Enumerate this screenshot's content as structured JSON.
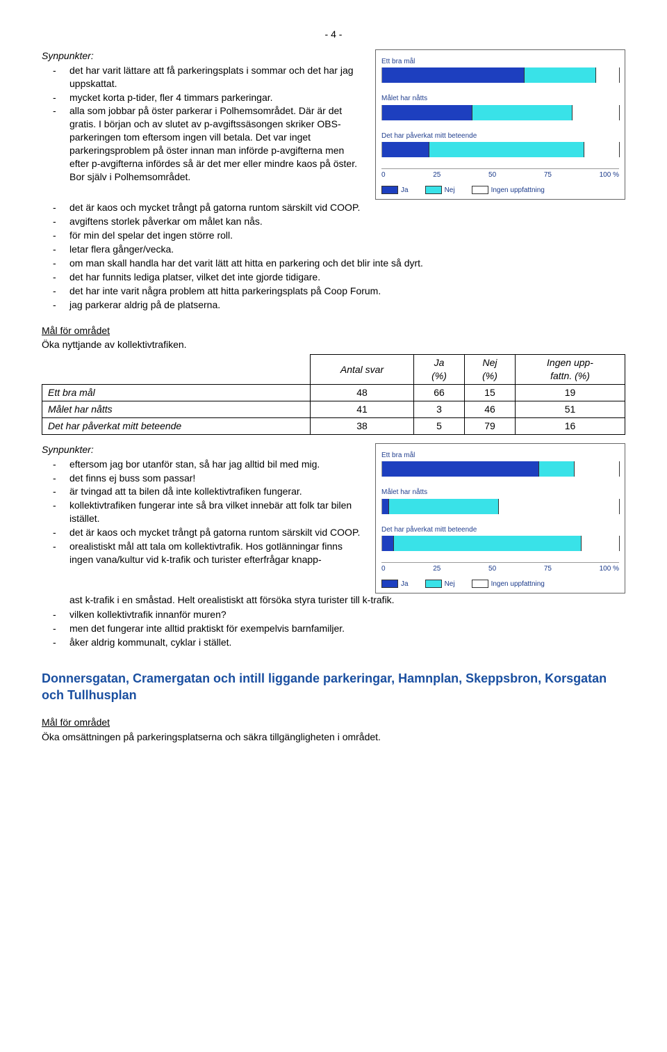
{
  "page_number": "- 4 -",
  "colors": {
    "ja": "#1d3fbf",
    "nej": "#39e2e8",
    "ingen": "#ffffff",
    "axis_text": "#1a3a8a"
  },
  "block1": {
    "heading": "Synpunkter:",
    "items_left": [
      "det har varit lättare att få parkeringsplats i sommar och det har jag uppskattat.",
      "mycket korta p-tider, fler 4 timmars parkeringar.",
      "alla som jobbar på öster parkerar i Polhemsområdet. Där är det gratis. I början och av slutet av p-avgiftssäsongen skriker OBS-parkeringen tom eftersom ingen vill betala. Det var inget parkeringsproblem på öster innan man införde p-avgifterna men efter p-avgifterna infördes så är det mer eller mindre kaos på öster. Bor själv i Polhemsområdet."
    ],
    "items_full": [
      "det är kaos och mycket trångt på gatorna runtom särskilt vid COOP.",
      "avgiftens storlek påverkar om målet kan nås.",
      "för min del spelar det ingen större roll.",
      "letar flera gånger/vecka.",
      "om man skall handla har det varit lätt att hitta en parkering och det blir inte så dyrt.",
      "det har funnits lediga platser, vilket det inte gjorde tidigare.",
      "det har inte varit några problem att hitta parkeringsplats på Coop Forum.",
      "jag parkerar aldrig på de platserna."
    ]
  },
  "chart1": {
    "rows": [
      {
        "label": "Ett bra mål",
        "ja": 60,
        "nej": 30,
        "ingen": 10
      },
      {
        "label": "Målet har nåtts",
        "ja": 38,
        "nej": 42,
        "ingen": 20
      },
      {
        "label": "Det har påverkat mitt beteende",
        "ja": 20,
        "nej": 65,
        "ingen": 15
      }
    ],
    "ticks": [
      "0",
      "25",
      "50",
      "75",
      "100 %"
    ],
    "legend": {
      "ja": "Ja",
      "nej": "Nej",
      "ingen": "Ingen uppfattning"
    }
  },
  "goal_section": {
    "label": "Mål för området",
    "text": "Öka nyttjande av kollektivtrafiken.",
    "table": {
      "headers": [
        "",
        "Antal svar",
        "Ja\n(%)",
        "Nej\n(%)",
        "Ingen upp-\nfattn. (%)"
      ],
      "rows": [
        [
          "Ett bra mål",
          "48",
          "66",
          "15",
          "19"
        ],
        [
          "Målet har nåtts",
          "41",
          "3",
          "46",
          "51"
        ],
        [
          "Det har påverkat mitt beteende",
          "38",
          "5",
          "79",
          "16"
        ]
      ]
    }
  },
  "block2": {
    "heading": "Synpunkter:",
    "items_left": [
      "eftersom jag bor utanför stan, så har jag alltid bil med mig.",
      "det finns ej buss som passar!",
      "är tvingad att ta bilen då inte kollektivtrafiken fungerar.",
      "kollektivtrafiken fungerar inte så bra vilket innebär att folk tar bilen istället.",
      "det är kaos och mycket trångt på gatorna runtom särskilt vid COOP.",
      "orealistiskt mål att tala om kollektivtrafik. Hos gotlänningar finns ingen vana/kultur vid k-trafik och turister efterfrågar knapp-"
    ],
    "continuation": "ast k-trafik i en småstad. Helt orealistiskt att försöka styra turister till k-trafik.",
    "items_full": [
      "vilken kollektivtrafik innanför muren?",
      "men det fungerar inte alltid praktiskt för exempelvis barnfamiljer.",
      "åker aldrig kommunalt, cyklar i stället."
    ]
  },
  "chart2": {
    "rows": [
      {
        "label": "Ett bra mål",
        "ja": 66,
        "nej": 15,
        "ingen": 19
      },
      {
        "label": "Målet har nåtts",
        "ja": 3,
        "nej": 46,
        "ingen": 51
      },
      {
        "label": "Det har påverkat mitt beteende",
        "ja": 5,
        "nej": 79,
        "ingen": 16
      }
    ],
    "ticks": [
      "0",
      "25",
      "50",
      "75",
      "100 %"
    ],
    "legend": {
      "ja": "Ja",
      "nej": "Nej",
      "ingen": "Ingen uppfattning"
    }
  },
  "blue_heading": "Donnersgatan, Cramergatan och intill liggande parkeringar, Hamnplan, Skeppsbron, Korsgatan och Tullhusplan",
  "goal_section2": {
    "label": "Mål för området",
    "text": "Öka omsättningen på parkeringsplatserna och säkra tillgängligheten i området."
  }
}
